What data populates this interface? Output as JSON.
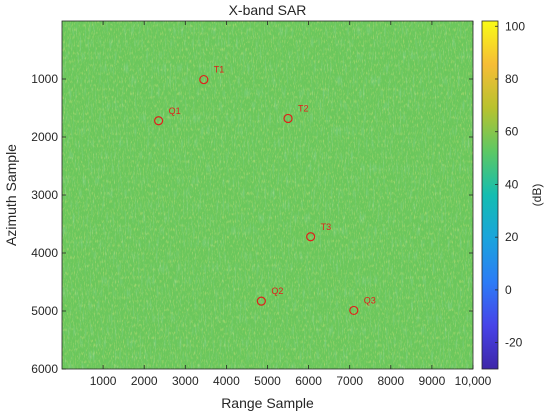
{
  "chart_data": {
    "type": "heatmap",
    "title": "X-band SAR",
    "xlabel": "Range Sample",
    "ylabel": "Azimuth Sample",
    "xlim": [
      0,
      10000
    ],
    "ylim": [
      0,
      6000
    ],
    "y_reversed": true,
    "x_ticks": [
      1000,
      2000,
      3000,
      4000,
      5000,
      6000,
      7000,
      8000,
      9000,
      10000
    ],
    "x_tick_labels": [
      "1000",
      "2000",
      "3000",
      "4000",
      "5000",
      "6000",
      "7000",
      "8000",
      "9000",
      "10,000"
    ],
    "y_ticks": [
      1000,
      2000,
      3000,
      4000,
      5000,
      6000
    ],
    "y_tick_labels": [
      "1000",
      "2000",
      "3000",
      "4000",
      "5000",
      "6000"
    ],
    "colorbar": {
      "label": "(dB)",
      "range": [
        -30,
        102
      ],
      "ticks": [
        -20,
        0,
        20,
        40,
        60,
        80,
        100
      ],
      "tick_labels": [
        "-20",
        "0",
        "20",
        "40",
        "60",
        "80",
        "100"
      ],
      "colormap": "parula"
    },
    "background_level_db": 55,
    "markers": [
      {
        "label": "T1",
        "x": 3450,
        "y": 1010
      },
      {
        "label": "Q1",
        "x": 2350,
        "y": 1720
      },
      {
        "label": "T2",
        "x": 5500,
        "y": 1680
      },
      {
        "label": "T3",
        "x": 6050,
        "y": 3720
      },
      {
        "label": "Q2",
        "x": 4850,
        "y": 4830
      },
      {
        "label": "Q3",
        "x": 7100,
        "y": 4990
      }
    ],
    "marker_color": "#e0201b"
  }
}
